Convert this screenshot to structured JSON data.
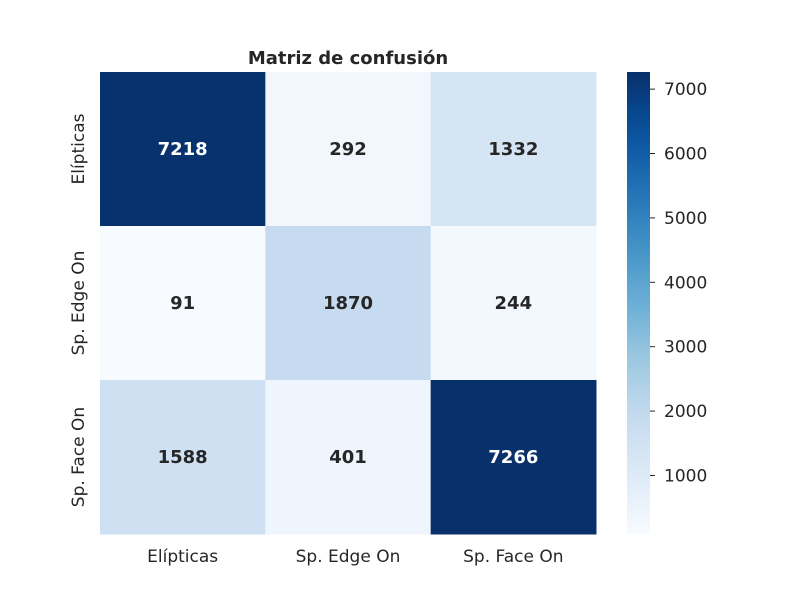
{
  "chart_data": {
    "type": "heatmap",
    "title": "Matriz de confusión",
    "xlabel": "",
    "ylabel": "",
    "row_labels": [
      "Elípticas",
      "Sp. Edge On",
      "Sp. Face On"
    ],
    "col_labels": [
      "Elípticas",
      "Sp. Edge On",
      "Sp. Face On"
    ],
    "values": [
      [
        7218,
        292,
        1332
      ],
      [
        91,
        1870,
        244
      ],
      [
        1588,
        401,
        7266
      ]
    ],
    "colorbar": {
      "min": 91,
      "max": 7266,
      "ticks": [
        1000,
        2000,
        3000,
        4000,
        5000,
        6000,
        7000
      ],
      "colormap": "Blues"
    },
    "colors": {
      "light": "#f7fbff",
      "dark": "#08306b",
      "text_light": "#ffffff",
      "text_dark": "#262626"
    }
  }
}
